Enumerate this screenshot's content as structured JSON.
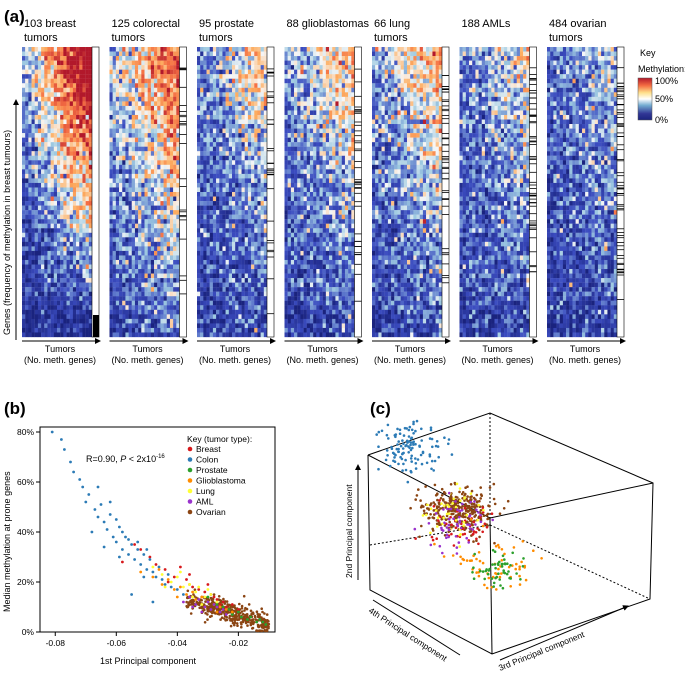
{
  "colors": {
    "breast": "#d7191c",
    "colon": "#2c7bb6",
    "prostate": "#2ca02c",
    "glioblastoma": "#ff8c00",
    "lung": "#ffff33",
    "aml": "#9932cc",
    "ovarian": "#8b4513",
    "heat_low": "#1a237e",
    "heat_mid": "#ffffff",
    "heat_high": "#b2182b"
  },
  "chart_data": [
    {
      "panel": "(a)",
      "type": "heatmap",
      "ylabel": "Genes (frequency of methylation in breast tumours)",
      "key": {
        "title": "Key",
        "subtitle": "Methylation:",
        "ticks": [
          "100%",
          "50%",
          "0%"
        ]
      },
      "heatmaps": [
        {
          "title_lines": [
            "103 breast",
            "tumors"
          ],
          "xlabel_lines": [
            "Tumors",
            "(No. meth. genes)"
          ],
          "level": 0.62
        },
        {
          "title_lines": [
            "125 colorectal",
            "tumors"
          ],
          "xlabel_lines": [
            "Tumors",
            "(No. meth. genes)"
          ],
          "level": 0.68
        },
        {
          "title_lines": [
            "95 prostate",
            "tumors"
          ],
          "xlabel_lines": [
            "Tumors",
            "(No. meth. genes)"
          ],
          "level": 0.45
        },
        {
          "title_lines": [
            "88 glioblastomas"
          ],
          "xlabel_lines": [
            "Tumors",
            "(No. meth. genes)"
          ],
          "level": 0.5
        },
        {
          "title_lines": [
            "66 lung",
            "tumors"
          ],
          "xlabel_lines": [
            "Tumors",
            "(No. meth. genes)"
          ],
          "level": 0.52
        },
        {
          "title_lines": [
            "188 AMLs"
          ],
          "xlabel_lines": [
            "Tumors",
            "(No. meth. genes)"
          ],
          "level": 0.42
        },
        {
          "title_lines": [
            "484 ovarian",
            "tumors"
          ],
          "xlabel_lines": [
            "Tumors",
            "(No. meth. genes)"
          ],
          "level": 0.35
        }
      ]
    },
    {
      "panel": "(b)",
      "type": "scatter",
      "xlabel": "1st Principal component",
      "ylabel": "Median methylation at prone genes",
      "xlim": [
        -0.085,
        -0.008
      ],
      "ylim": [
        0,
        0.82
      ],
      "xticks": [
        -0.08,
        -0.06,
        -0.04,
        -0.02
      ],
      "xtick_labels": [
        "-0.08",
        "-0.06",
        "-0.04",
        "-0.02"
      ],
      "yticks": [
        0,
        0.2,
        0.4,
        0.6,
        0.8
      ],
      "ytick_labels": [
        "0%",
        "20%",
        "40%",
        "60%",
        "80%"
      ],
      "annotation": {
        "prefix": "R=0.90, ",
        "p_label": "P",
        "middle": " < 2x10",
        "exponent": "-16"
      },
      "legend": {
        "title": "Key (tumor type):",
        "entries": [
          "Breast",
          "Colon",
          "Prostate",
          "Glioblastoma",
          "Lung",
          "AML",
          "Ovarian"
        ]
      },
      "series": [
        {
          "name": "Breast",
          "color_key": "breast",
          "points": [
            [
              -0.058,
              0.28
            ],
            [
              -0.052,
              0.33
            ],
            [
              -0.047,
              0.27
            ],
            [
              -0.044,
              0.25
            ],
            [
              -0.041,
              0.22
            ],
            [
              -0.039,
              0.26
            ],
            [
              -0.037,
              0.21
            ],
            [
              -0.035,
              0.18
            ],
            [
              -0.033,
              0.17
            ],
            [
              -0.031,
              0.16
            ],
            [
              -0.03,
              0.19
            ],
            [
              -0.028,
              0.14
            ],
            [
              -0.027,
              0.13
            ],
            [
              -0.025,
              0.12
            ],
            [
              -0.024,
              0.1
            ],
            [
              -0.022,
              0.11
            ],
            [
              -0.02,
              0.09
            ],
            [
              -0.049,
              0.3
            ],
            [
              -0.043,
              0.2
            ],
            [
              -0.036,
              0.23
            ],
            [
              -0.029,
              0.15
            ],
            [
              -0.026,
              0.11
            ],
            [
              -0.054,
              0.35
            ],
            [
              -0.032,
              0.14
            ]
          ]
        },
        {
          "name": "Colon",
          "color_key": "colon",
          "points": [
            [
              -0.081,
              0.8
            ],
            [
              -0.078,
              0.77
            ],
            [
              -0.077,
              0.73
            ],
            [
              -0.075,
              0.68
            ],
            [
              -0.074,
              0.64
            ],
            [
              -0.072,
              0.61
            ],
            [
              -0.071,
              0.58
            ],
            [
              -0.07,
              0.52
            ],
            [
              -0.069,
              0.55
            ],
            [
              -0.067,
              0.49
            ],
            [
              -0.066,
              0.46
            ],
            [
              -0.065,
              0.51
            ],
            [
              -0.064,
              0.44
            ],
            [
              -0.063,
              0.41
            ],
            [
              -0.062,
              0.47
            ],
            [
              -0.061,
              0.38
            ],
            [
              -0.06,
              0.36
            ],
            [
              -0.059,
              0.42
            ],
            [
              -0.058,
              0.33
            ],
            [
              -0.057,
              0.38
            ],
            [
              -0.056,
              0.31
            ],
            [
              -0.055,
              0.35
            ],
            [
              -0.054,
              0.29
            ],
            [
              -0.053,
              0.33
            ],
            [
              -0.052,
              0.27
            ],
            [
              -0.051,
              0.31
            ],
            [
              -0.05,
              0.25
            ],
            [
              -0.049,
              0.29
            ],
            [
              -0.048,
              0.24
            ],
            [
              -0.047,
              0.22
            ],
            [
              -0.046,
              0.26
            ],
            [
              -0.045,
              0.21
            ],
            [
              -0.044,
              0.19
            ],
            [
              -0.043,
              0.23
            ],
            [
              -0.042,
              0.18
            ],
            [
              -0.04,
              0.17
            ],
            [
              -0.038,
              0.15
            ],
            [
              -0.06,
              0.45
            ],
            [
              -0.058,
              0.4
            ],
            [
              -0.056,
              0.37
            ],
            [
              -0.053,
              0.36
            ],
            [
              -0.068,
              0.4
            ],
            [
              -0.064,
              0.34
            ],
            [
              -0.059,
              0.3
            ],
            [
              -0.05,
              0.33
            ],
            [
              -0.055,
              0.15
            ],
            [
              -0.048,
              0.12
            ],
            [
              -0.066,
              0.58
            ],
            [
              -0.062,
              0.52
            ],
            [
              -0.051,
              0.22
            ]
          ]
        },
        {
          "name": "Prostate",
          "color_key": "prostate",
          "points": [
            [
              -0.03,
              0.14
            ],
            [
              -0.027,
              0.11
            ],
            [
              -0.025,
              0.1
            ],
            [
              -0.023,
              0.09
            ],
            [
              -0.022,
              0.07
            ],
            [
              -0.02,
              0.08
            ],
            [
              -0.019,
              0.06
            ],
            [
              -0.017,
              0.05
            ],
            [
              -0.016,
              0.06
            ],
            [
              -0.014,
              0.04
            ],
            [
              -0.013,
              0.05
            ],
            [
              -0.012,
              0.04
            ],
            [
              -0.011,
              0.03
            ]
          ]
        },
        {
          "name": "Glioblastoma",
          "color_key": "glioblastoma",
          "points": [
            [
              -0.052,
              0.24
            ],
            [
              -0.048,
              0.22
            ],
            [
              -0.045,
              0.19
            ],
            [
              -0.043,
              0.21
            ],
            [
              -0.041,
              0.17
            ],
            [
              -0.039,
              0.18
            ],
            [
              -0.037,
              0.15
            ],
            [
              -0.035,
              0.16
            ],
            [
              -0.034,
              0.13
            ],
            [
              -0.032,
              0.14
            ],
            [
              -0.03,
              0.12
            ],
            [
              -0.028,
              0.11
            ],
            [
              -0.026,
              0.1
            ],
            [
              -0.024,
              0.09
            ],
            [
              -0.046,
              0.25
            ],
            [
              -0.04,
              0.14
            ],
            [
              -0.036,
              0.19
            ],
            [
              -0.031,
              0.1
            ],
            [
              -0.027,
              0.08
            ],
            [
              -0.022,
              0.08
            ]
          ]
        },
        {
          "name": "Lung",
          "color_key": "lung",
          "points": [
            [
              -0.048,
              0.26
            ],
            [
              -0.045,
              0.23
            ],
            [
              -0.042,
              0.2
            ],
            [
              -0.04,
              0.22
            ],
            [
              -0.038,
              0.18
            ],
            [
              -0.036,
              0.19
            ],
            [
              -0.034,
              0.16
            ],
            [
              -0.033,
              0.18
            ],
            [
              -0.031,
              0.14
            ],
            [
              -0.029,
              0.15
            ],
            [
              -0.027,
              0.12
            ],
            [
              -0.044,
              0.18
            ],
            [
              -0.039,
              0.24
            ],
            [
              -0.035,
              0.14
            ],
            [
              -0.03,
              0.17
            ],
            [
              -0.032,
              0.11
            ]
          ]
        },
        {
          "name": "AML",
          "color_key": "aml",
          "points": [
            [
              -0.038,
              0.12
            ],
            [
              -0.036,
              0.14
            ],
            [
              -0.034,
              0.11
            ],
            [
              -0.033,
              0.13
            ],
            [
              -0.031,
              0.1
            ],
            [
              -0.03,
              0.12
            ],
            [
              -0.029,
              0.09
            ],
            [
              -0.028,
              0.11
            ],
            [
              -0.027,
              0.1
            ],
            [
              -0.026,
              0.08
            ],
            [
              -0.025,
              0.09
            ],
            [
              -0.024,
              0.07
            ],
            [
              -0.032,
              0.08
            ],
            [
              -0.035,
              0.1
            ]
          ]
        }
      ],
      "dense_cloud": {
        "name": "Ovarian",
        "color_key": "ovarian",
        "count": 420,
        "x_range": [
          -0.037,
          -0.01
        ],
        "trend_y": [
          0.13,
          0.03
        ]
      }
    },
    {
      "panel": "(c)",
      "type": "scatter",
      "projection": "3d",
      "axis_labels": [
        "2nd Principal component",
        "4th Principal component",
        "3rd Principal component"
      ],
      "clusters": [
        {
          "name": "Colon",
          "color_key": "colon",
          "count": 120,
          "center": [
            0.12,
            0.88,
            0.3
          ],
          "spread": [
            0.1,
            0.12,
            0.12
          ]
        },
        {
          "name": "Ovarian",
          "color_key": "ovarian",
          "count": 300,
          "center": [
            0.28,
            0.32,
            0.1
          ],
          "spread": [
            0.1,
            0.08,
            0.12
          ]
        },
        {
          "name": "Breast",
          "color_key": "breast",
          "count": 45,
          "center": [
            0.48,
            0.45,
            0.35
          ],
          "spread": [
            0.08,
            0.1,
            0.1
          ]
        },
        {
          "name": "Glioblastoma",
          "color_key": "glioblastoma",
          "count": 60,
          "center": [
            0.72,
            0.28,
            0.4
          ],
          "spread": [
            0.14,
            0.1,
            0.14
          ]
        },
        {
          "name": "Prostate",
          "color_key": "prostate",
          "count": 50,
          "center": [
            0.68,
            0.18,
            0.3
          ],
          "spread": [
            0.06,
            0.08,
            0.08
          ]
        },
        {
          "name": "Lung",
          "color_key": "lung",
          "count": 40,
          "center": [
            0.5,
            0.62,
            0.45
          ],
          "spread": [
            0.08,
            0.1,
            0.12
          ]
        },
        {
          "name": "AML",
          "color_key": "aml",
          "count": 55,
          "center": [
            0.6,
            0.68,
            0.55
          ],
          "spread": [
            0.1,
            0.12,
            0.12
          ]
        }
      ]
    }
  ]
}
